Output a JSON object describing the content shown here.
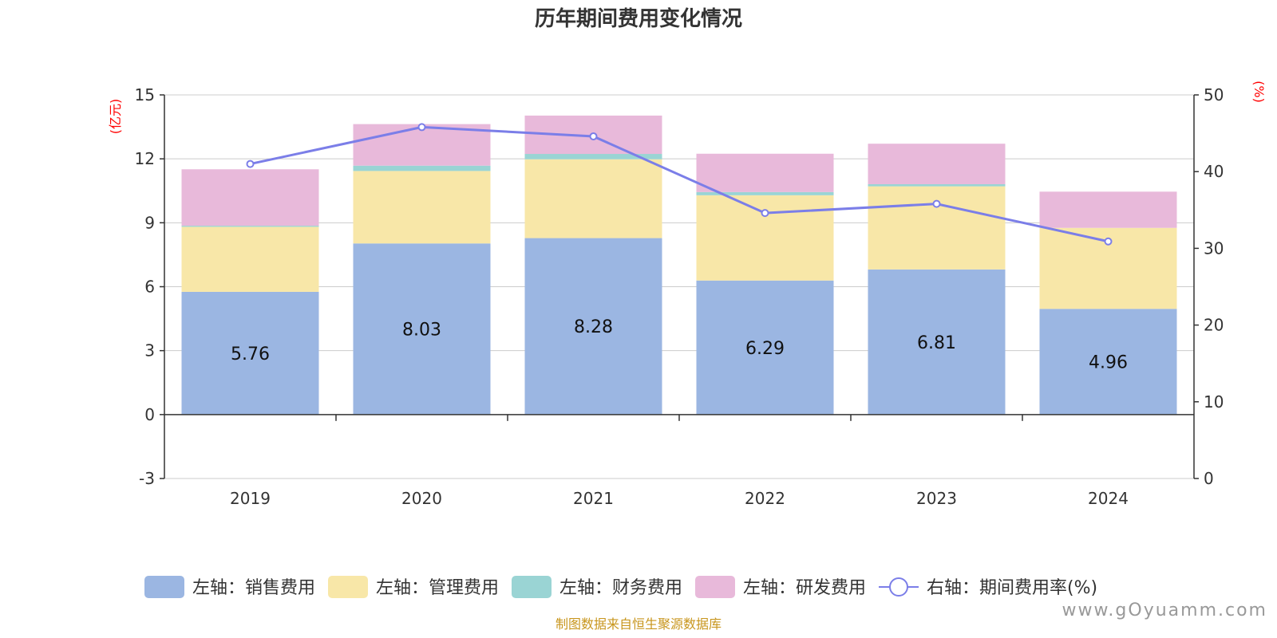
{
  "chart_data": {
    "type": "bar",
    "title": "历年期间费用变化情况",
    "categories": [
      "2019",
      "2020",
      "2021",
      "2022",
      "2023",
      "2024"
    ],
    "series": [
      {
        "name": "左轴：销售费用",
        "axis": "left",
        "color": "#9bb6e2",
        "values": [
          5.76,
          8.03,
          8.28,
          6.29,
          6.81,
          4.96
        ]
      },
      {
        "name": "左轴：管理费用",
        "axis": "left",
        "color": "#f8e7a8",
        "values": [
          3.05,
          3.4,
          3.7,
          4.0,
          3.9,
          3.8
        ]
      },
      {
        "name": "左轴：财务费用",
        "axis": "left",
        "color": "#9ad4d4",
        "values": [
          0.05,
          0.25,
          0.25,
          0.15,
          0.1,
          0.0
        ]
      },
      {
        "name": "左轴：研发费用",
        "axis": "left",
        "color": "#e8b9da",
        "values": [
          2.65,
          1.95,
          1.8,
          1.8,
          1.9,
          1.7
        ]
      }
    ],
    "line_series": {
      "name": "右轴：期间费用率(%)",
      "axis": "right",
      "color": "#7b7ee8",
      "values": [
        41.0,
        45.8,
        44.6,
        34.6,
        35.8,
        30.9
      ]
    },
    "left_axis": {
      "unit": "(亿元)",
      "min": -3,
      "max": 15,
      "ticks": [
        15,
        12,
        9,
        6,
        3,
        0,
        -3
      ]
    },
    "right_axis": {
      "unit": "(%)",
      "min": 0,
      "max": 50,
      "ticks": [
        50,
        40,
        30,
        20,
        10,
        0
      ]
    },
    "grid": true,
    "legend_position": "bottom",
    "colors": {
      "unit": "#ff0000",
      "source": "#c8961e",
      "axis": "#333333",
      "grid": "#cccccc"
    },
    "source": "制图数据来自恒生聚源数据库",
    "watermark": "www.gOyuamm.com"
  }
}
